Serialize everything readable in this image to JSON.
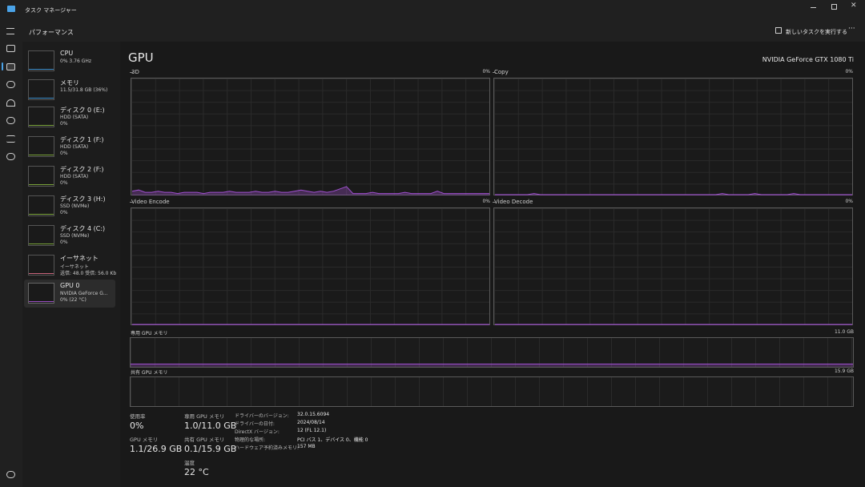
{
  "title_bar": {
    "title": "タスク マネージャー"
  },
  "header": {
    "title": "パフォーマンス",
    "run_task": "新しいタスクを実行する"
  },
  "sidebar": [
    {
      "name": "CPU",
      "lines": [
        "0% 3.76 GHz"
      ]
    },
    {
      "name": "メモリ",
      "lines": [
        "11.5/31.8 GB (36%)"
      ]
    },
    {
      "name": "ディスク 0 (E:)",
      "lines": [
        "HDD (SATA)",
        "0%"
      ]
    },
    {
      "name": "ディスク 1 (F:)",
      "lines": [
        "HDD (SATA)",
        "0%"
      ]
    },
    {
      "name": "ディスク 2 (F:)",
      "lines": [
        "HDD (SATA)",
        "0%"
      ]
    },
    {
      "name": "ディスク 3 (H:)",
      "lines": [
        "SSD (NVMe)",
        "0%"
      ]
    },
    {
      "name": "ディスク 4 (C:)",
      "lines": [
        "SSD (NVMe)",
        "0%"
      ]
    },
    {
      "name": "イーサネット",
      "lines": [
        "イーサネット",
        "送信: 48.0 受信: 56.0 Kb"
      ]
    },
    {
      "name": "GPU 0",
      "lines": [
        "NVIDIA GeForce G...",
        "0% (22 °C)"
      ]
    }
  ],
  "main": {
    "title": "GPU",
    "device": "NVIDIA GeForce GTX 1080 Ti",
    "graphs": [
      {
        "label": "3D",
        "current": "0%",
        "ylim": [
          0,
          100
        ],
        "values": [
          3,
          4,
          2,
          2,
          3,
          2,
          2,
          1,
          2,
          2,
          2,
          1,
          2,
          2,
          2,
          3,
          2,
          2,
          2,
          3,
          2,
          2,
          3,
          2,
          2,
          3,
          4,
          3,
          2,
          3,
          2,
          3,
          5,
          7,
          1,
          1,
          1,
          2,
          1,
          1,
          1,
          1,
          2,
          1,
          1,
          1,
          1,
          3,
          1,
          1,
          1,
          1,
          1,
          1,
          1,
          1
        ]
      },
      {
        "label": "Copy",
        "current": "0%",
        "ylim": [
          0,
          100
        ],
        "values": [
          0,
          0,
          0,
          0,
          0,
          0,
          1,
          0,
          0,
          0,
          0,
          0,
          0,
          0,
          0,
          0,
          0,
          0,
          0,
          0,
          0,
          0,
          0,
          0,
          0,
          0,
          0,
          0,
          0,
          0,
          0,
          0,
          0,
          0,
          0,
          1,
          0,
          0,
          0,
          0,
          1,
          0,
          0,
          0,
          0,
          0,
          1,
          0,
          0,
          0,
          0,
          0,
          0,
          0,
          0,
          0
        ]
      },
      {
        "label": "Video Encode",
        "current": "0%",
        "ylim": [
          0,
          100
        ],
        "values": [
          0,
          0,
          0,
          0,
          0,
          0,
          0,
          0,
          0,
          0,
          0,
          0,
          0,
          0,
          0,
          0,
          0,
          0,
          0,
          0,
          0,
          0,
          0,
          0,
          0,
          0,
          0,
          0,
          0,
          0,
          0,
          0,
          0,
          0,
          0,
          0,
          0,
          0,
          0,
          0,
          0,
          0,
          0,
          0,
          0,
          0,
          0,
          0,
          0,
          0,
          0,
          0,
          0,
          0,
          0,
          0
        ]
      },
      {
        "label": "Video Decode",
        "current": "0%",
        "ylim": [
          0,
          100
        ],
        "values": [
          0,
          0,
          0,
          0,
          0,
          0,
          0,
          0,
          0,
          0,
          0,
          0,
          0,
          0,
          0,
          0,
          0,
          0,
          0,
          0,
          0,
          0,
          0,
          0,
          0,
          0,
          0,
          0,
          0,
          0,
          0,
          0,
          0,
          0,
          0,
          0,
          0,
          0,
          0,
          0,
          0,
          0,
          0,
          0,
          0,
          0,
          0,
          0,
          0,
          0,
          0,
          0,
          0,
          0,
          0,
          0
        ]
      }
    ],
    "memory_graphs": [
      {
        "label": "専用 GPU メモリ",
        "max": "11.0 GB"
      },
      {
        "label": "共有 GPU メモリ",
        "max": "15.9 GB"
      }
    ],
    "stats": [
      {
        "label": "使用率",
        "value": "0%"
      },
      {
        "label": "GPU メモリ",
        "value": "1.1/26.9 GB"
      },
      {
        "label": "専用 GPU メモリ",
        "value": "1.0/11.0 GB"
      },
      {
        "label": "共有 GPU メモリ",
        "value": "0.1/15.9 GB"
      },
      {
        "label": "温度",
        "value": "22 °C"
      }
    ],
    "details": [
      {
        "label": "ドライバーのバージョン:",
        "value": "32.0.15.6094"
      },
      {
        "label": "ドライバーの日付:",
        "value": "2024/08/14"
      },
      {
        "label": "DirectX バージョン:",
        "value": "12 (FL 12.1)"
      },
      {
        "label": "物理的な場所:",
        "value": "PCI バス 1、デバイス 0、機能 0"
      },
      {
        "label": "ハードウェア予約済みメモリ:",
        "value": "157 MB"
      }
    ]
  }
}
